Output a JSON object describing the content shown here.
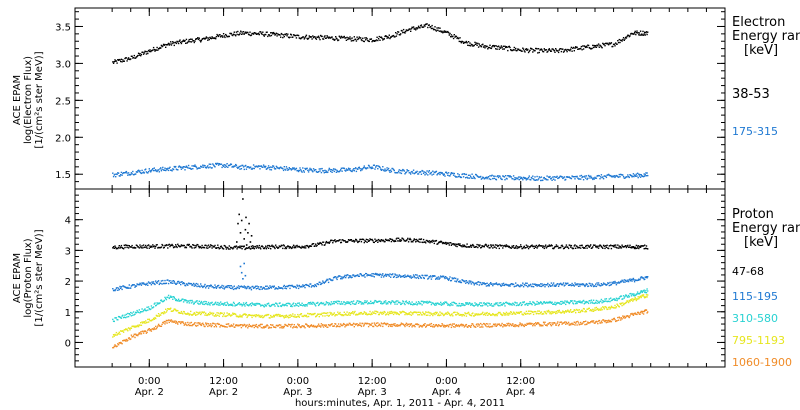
{
  "chart_data": [
    {
      "type": "scatter",
      "panel": "electron",
      "ylabel_lines": [
        "ACE EPAM",
        "log(Electron Flux)",
        "[1/(cm²s ster MeV)]"
      ],
      "ylim": [
        1.3,
        3.75
      ],
      "yticks": [
        1.5,
        2.0,
        2.5,
        3.0,
        3.5
      ],
      "ytick_labels": [
        "1.5",
        "2.0",
        "2.5",
        "3.0",
        "3.5"
      ],
      "legend_title": [
        "Electron",
        "Energy ranges",
        "[keV]"
      ],
      "series": [
        {
          "name": "38-53",
          "color": "#000000",
          "x": [
            0,
            3,
            6,
            9,
            12,
            15,
            18,
            21,
            24,
            27,
            30,
            33,
            36,
            39,
            42,
            45,
            48,
            51,
            54,
            57,
            60,
            63,
            66,
            69,
            72,
            75,
            78,
            81,
            84,
            86.5
          ],
          "y": [
            3.02,
            3.08,
            3.18,
            3.27,
            3.31,
            3.34,
            3.39,
            3.42,
            3.41,
            3.39,
            3.37,
            3.36,
            3.35,
            3.34,
            3.33,
            3.38,
            3.47,
            3.52,
            3.42,
            3.29,
            3.24,
            3.22,
            3.19,
            3.18,
            3.18,
            3.21,
            3.24,
            3.27,
            3.42,
            3.42
          ]
        },
        {
          "name": "175-315",
          "color": "#1e78d2",
          "x": [
            0,
            3,
            6,
            9,
            12,
            15,
            18,
            21,
            24,
            27,
            30,
            33,
            36,
            39,
            42,
            45,
            48,
            51,
            54,
            57,
            60,
            63,
            66,
            69,
            72,
            75,
            78,
            81,
            84,
            86.5
          ],
          "y": [
            1.5,
            1.53,
            1.56,
            1.58,
            1.6,
            1.62,
            1.63,
            1.6,
            1.61,
            1.59,
            1.57,
            1.56,
            1.56,
            1.57,
            1.61,
            1.56,
            1.54,
            1.53,
            1.51,
            1.49,
            1.47,
            1.46,
            1.46,
            1.45,
            1.46,
            1.46,
            1.47,
            1.48,
            1.49,
            1.5
          ]
        }
      ]
    },
    {
      "type": "scatter",
      "panel": "proton",
      "ylabel_lines": [
        "ACE EPAM",
        "log(Proton Flux)",
        "[1/(cm²s ster MeV)]"
      ],
      "ylim": [
        -0.8,
        5.0
      ],
      "yticks": [
        0,
        1,
        2,
        3,
        4
      ],
      "ytick_labels": [
        "0",
        "1",
        "2",
        "3",
        "4"
      ],
      "legend_title": [
        "Proton",
        "Energy ranges",
        "[keV]"
      ],
      "series": [
        {
          "name": "47-68",
          "color": "#000000",
          "x": [
            0,
            3,
            6,
            9,
            12,
            15,
            18,
            21,
            24,
            27,
            30,
            33,
            36,
            39,
            42,
            45,
            48,
            51,
            54,
            57,
            60,
            63,
            66,
            69,
            72,
            75,
            78,
            81,
            84,
            86.5
          ],
          "y": [
            3.12,
            3.15,
            3.15,
            3.16,
            3.16,
            3.15,
            3.13,
            3.1,
            3.13,
            3.14,
            3.14,
            3.2,
            3.33,
            3.33,
            3.34,
            3.36,
            3.36,
            3.32,
            3.24,
            3.18,
            3.16,
            3.14,
            3.14,
            3.14,
            3.14,
            3.14,
            3.14,
            3.14,
            3.14,
            3.13
          ]
        },
        {
          "name": "115-195",
          "color": "#1e78d2",
          "x": [
            0,
            3,
            6,
            9,
            12,
            15,
            18,
            21,
            24,
            27,
            30,
            33,
            36,
            39,
            42,
            45,
            48,
            51,
            54,
            57,
            60,
            63,
            66,
            69,
            72,
            75,
            78,
            81,
            84,
            86.5
          ],
          "y": [
            1.75,
            1.85,
            1.95,
            2.0,
            1.92,
            1.85,
            1.82,
            1.8,
            1.8,
            1.82,
            1.84,
            1.9,
            2.12,
            2.2,
            2.22,
            2.2,
            2.18,
            2.15,
            2.12,
            1.98,
            1.92,
            1.9,
            1.9,
            1.9,
            1.9,
            1.9,
            1.9,
            1.95,
            2.05,
            2.15
          ]
        },
        {
          "name": "310-580",
          "color": "#28d2d2",
          "x": [
            0,
            3,
            6,
            9,
            12,
            15,
            18,
            21,
            24,
            27,
            30,
            33,
            36,
            39,
            42,
            45,
            48,
            51,
            54,
            57,
            60,
            63,
            66,
            69,
            72,
            75,
            78,
            81,
            84,
            86.5
          ],
          "y": [
            0.75,
            0.95,
            1.15,
            1.5,
            1.35,
            1.3,
            1.28,
            1.27,
            1.24,
            1.25,
            1.25,
            1.28,
            1.31,
            1.32,
            1.33,
            1.32,
            1.31,
            1.3,
            1.28,
            1.26,
            1.26,
            1.27,
            1.28,
            1.3,
            1.31,
            1.33,
            1.35,
            1.42,
            1.58,
            1.72
          ]
        },
        {
          "name": "795-1193",
          "color": "#e6e61e",
          "x": [
            0,
            3,
            6,
            9,
            12,
            15,
            18,
            21,
            24,
            27,
            30,
            33,
            36,
            39,
            42,
            45,
            48,
            51,
            54,
            57,
            60,
            63,
            66,
            69,
            72,
            75,
            78,
            81,
            84,
            86.5
          ],
          "y": [
            0.25,
            0.5,
            0.75,
            1.1,
            0.98,
            0.95,
            0.93,
            0.9,
            0.88,
            0.88,
            0.9,
            0.92,
            0.95,
            0.97,
            0.98,
            0.98,
            0.97,
            0.96,
            0.95,
            0.94,
            0.95,
            0.96,
            0.98,
            1.0,
            1.02,
            1.05,
            1.1,
            1.18,
            1.4,
            1.58
          ]
        },
        {
          "name": "1060-1900",
          "color": "#f08c28",
          "x": [
            0,
            3,
            6,
            9,
            12,
            15,
            18,
            21,
            24,
            27,
            30,
            33,
            36,
            39,
            42,
            45,
            48,
            51,
            54,
            57,
            60,
            63,
            66,
            69,
            72,
            75,
            78,
            81,
            84,
            86.5
          ],
          "y": [
            -0.15,
            0.2,
            0.42,
            0.72,
            0.63,
            0.6,
            0.58,
            0.56,
            0.55,
            0.55,
            0.56,
            0.57,
            0.58,
            0.59,
            0.6,
            0.6,
            0.59,
            0.58,
            0.57,
            0.57,
            0.58,
            0.59,
            0.6,
            0.62,
            0.63,
            0.65,
            0.68,
            0.75,
            0.92,
            1.05
          ]
        }
      ],
      "spike": {
        "series": "47-68",
        "x": [
          20.0,
          20.2,
          20.4,
          20.6,
          20.8,
          21.0,
          21.2,
          21.4,
          21.5,
          21.6,
          21.8,
          22.0,
          22.2,
          22.4,
          22.6
        ],
        "y": [
          3.3,
          3.9,
          4.2,
          3.6,
          4.0,
          4.7,
          3.4,
          3.7,
          4.1,
          3.2,
          3.6,
          3.9,
          3.3,
          3.5,
          3.1
        ]
      },
      "spike_blue": {
        "series": "115-195",
        "x": [
          20.6,
          20.8,
          21.0,
          21.2,
          21.4
        ],
        "y": [
          2.5,
          2.3,
          2.1,
          2.6,
          2.2
        ]
      }
    }
  ],
  "xaxis": {
    "xlim": [
      -6,
      99
    ],
    "major_ticks": [
      6,
      18,
      30,
      42,
      54,
      66
    ],
    "tick_time_labels": [
      "0:00",
      "12:00",
      "0:00",
      "12:00",
      "0:00",
      "12:00"
    ],
    "tick_date_labels": [
      "Apr. 2",
      "Apr. 2",
      "Apr. 3",
      "Apr. 3",
      "Apr. 4",
      "Apr. 4"
    ],
    "title": "hours:minutes, Apr.  1, 2011 - Apr.  4, 2011"
  }
}
